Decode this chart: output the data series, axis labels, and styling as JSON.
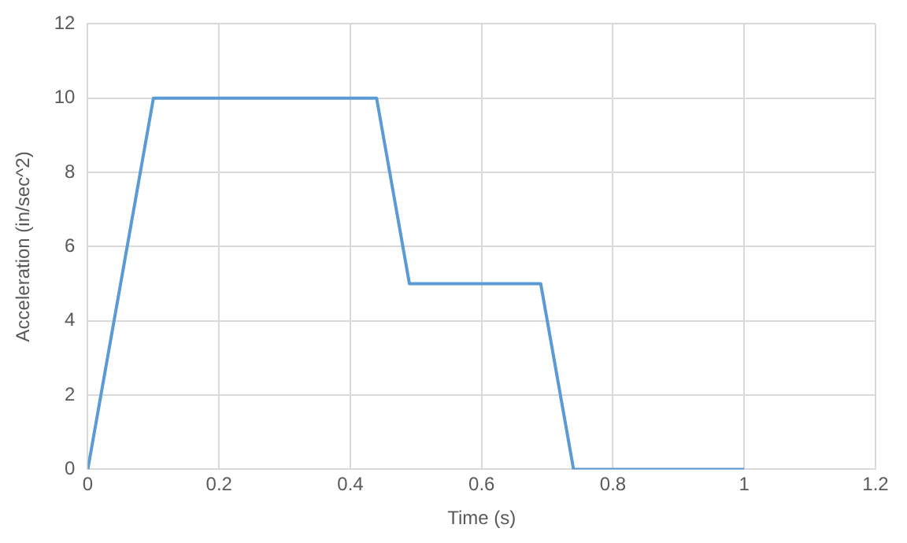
{
  "chart_data": {
    "type": "line",
    "xlabel": "Time (s)",
    "ylabel": "Acceleration (in/sec^2)",
    "x": [
      0,
      0.1,
      0.44,
      0.49,
      0.69,
      0.74,
      1
    ],
    "series": [
      {
        "color": "#5b9bd5",
        "values": [
          0,
          10,
          10,
          5,
          5,
          0,
          0
        ]
      }
    ],
    "xlim": [
      0,
      1.2
    ],
    "xticks": [
      0,
      0.2,
      0.4,
      0.6,
      0.8,
      1,
      1.2
    ],
    "ylim": [
      0,
      12
    ],
    "yticks": [
      0,
      2,
      4,
      6,
      8,
      10,
      12
    ],
    "grid": true,
    "legend": false,
    "marker": "none",
    "line_style": "solid"
  }
}
